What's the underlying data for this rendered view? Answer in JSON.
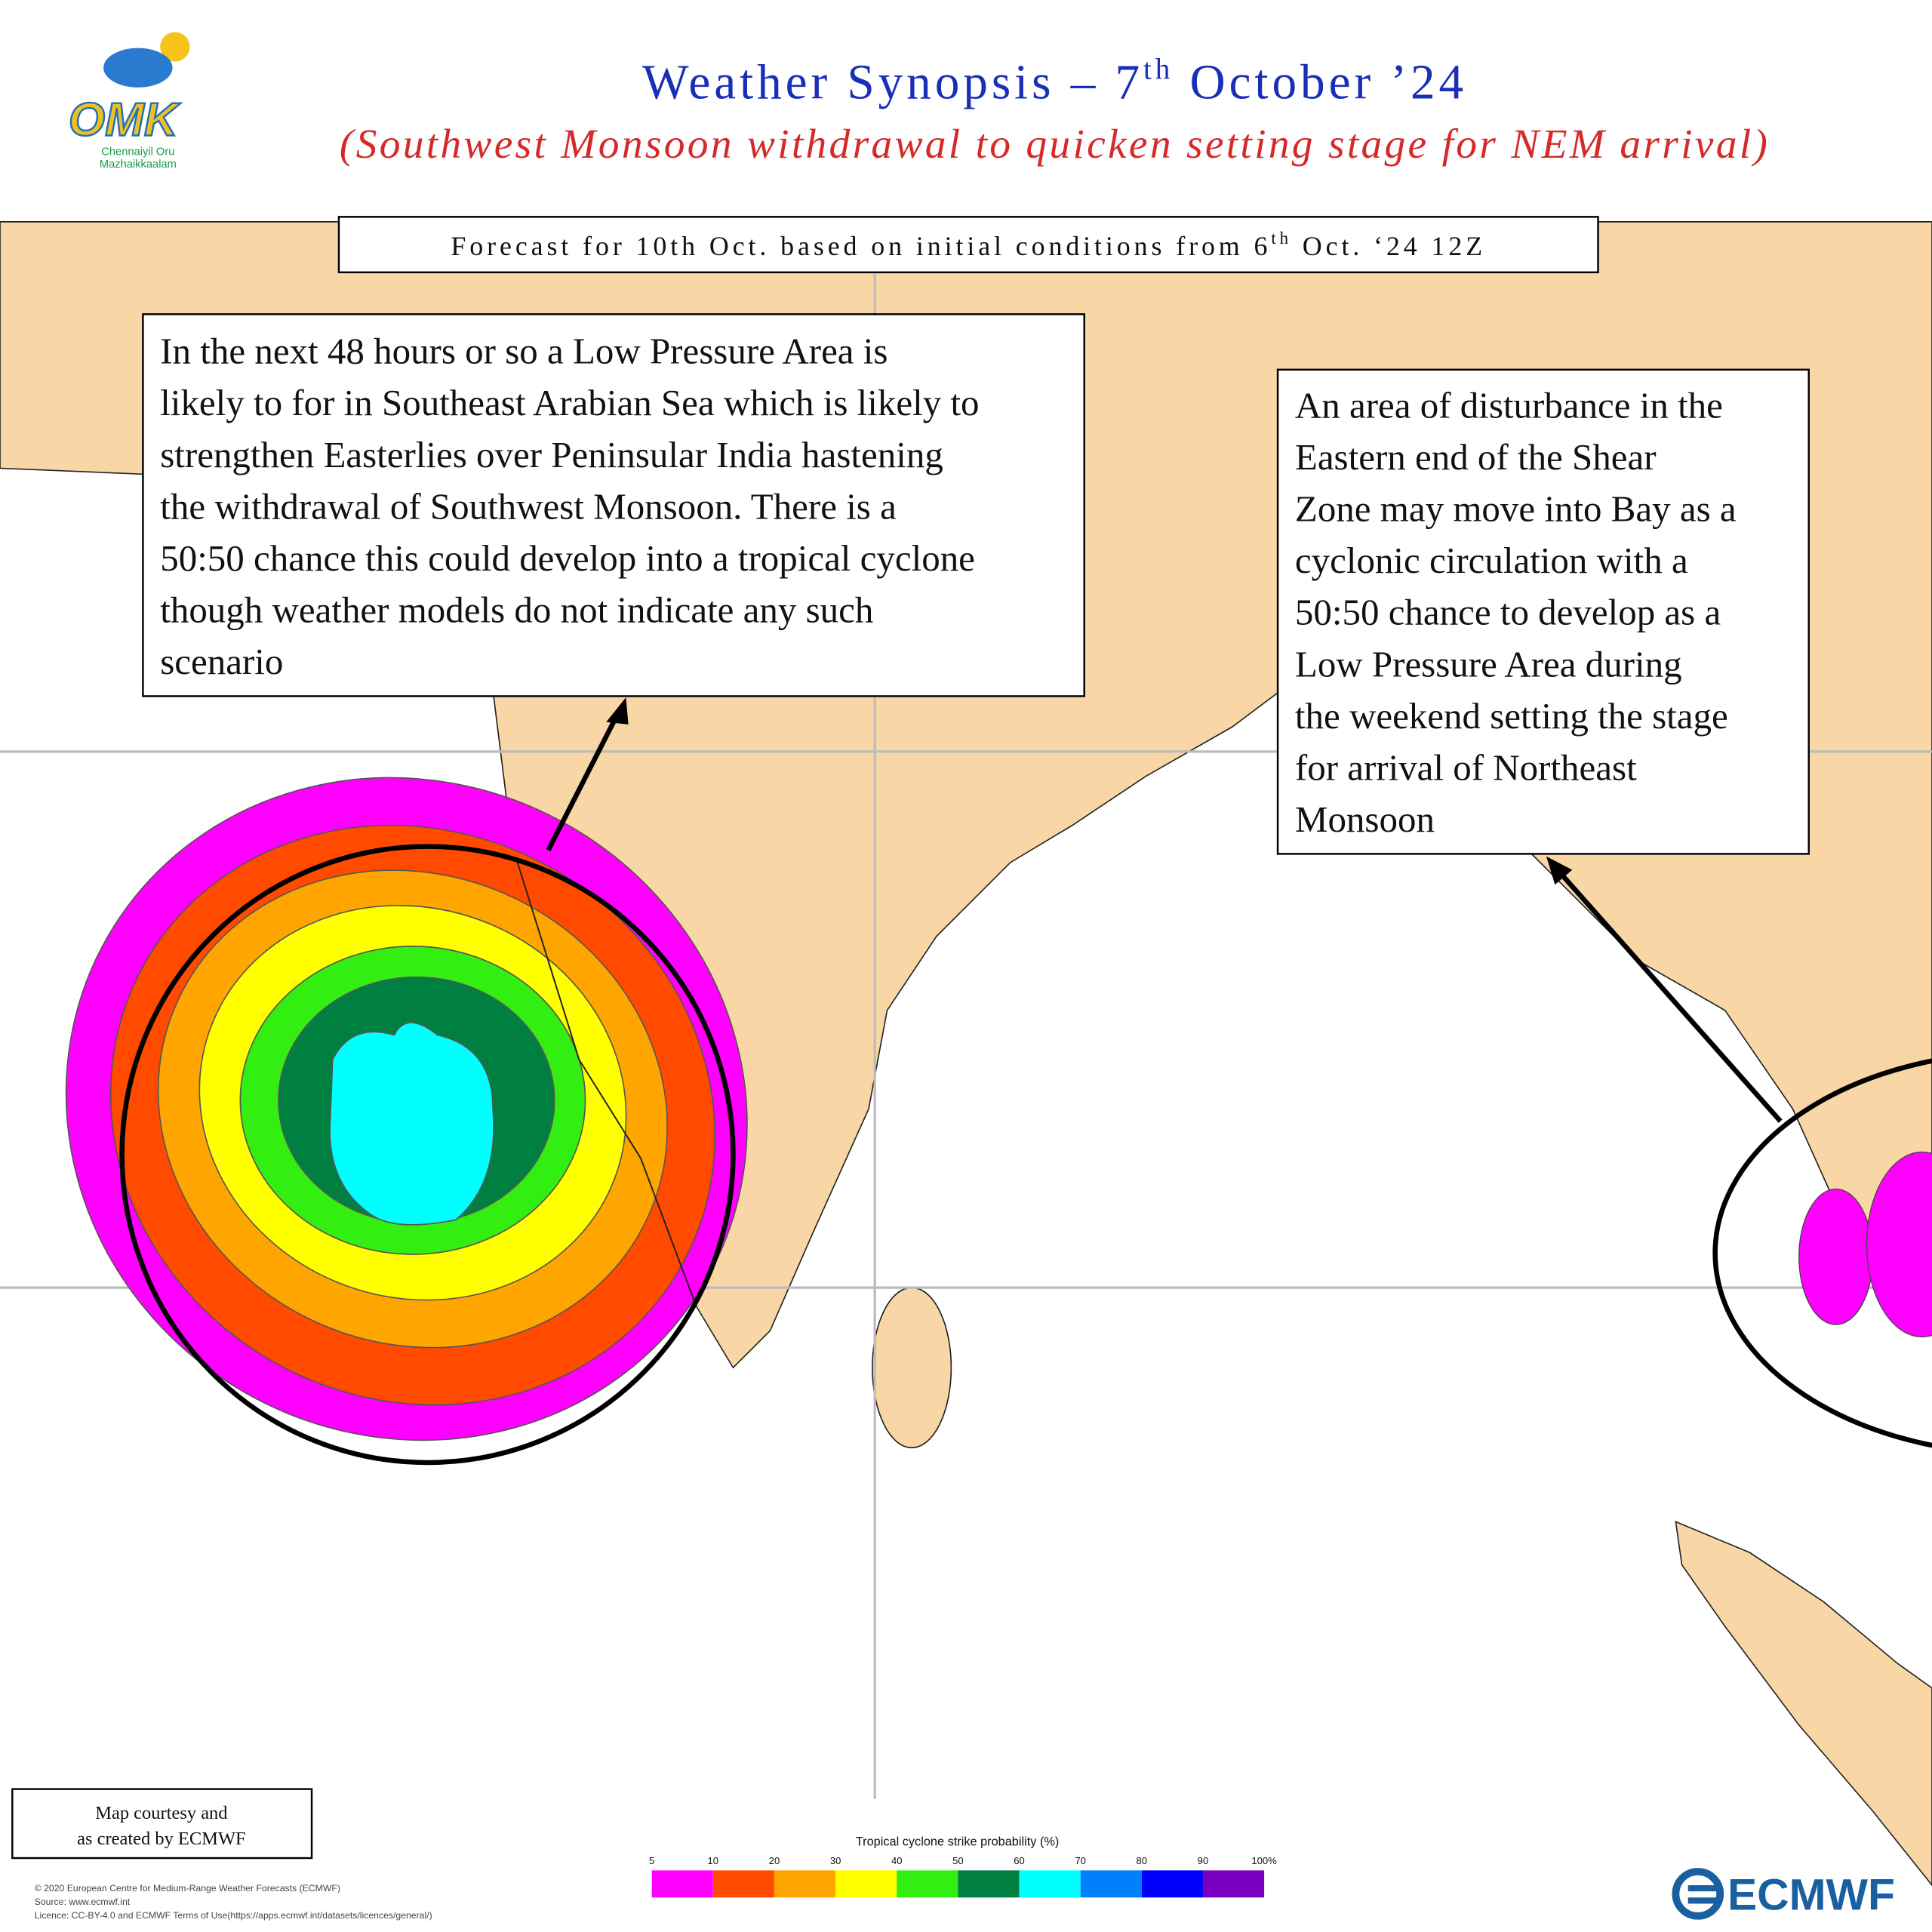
{
  "logo": {
    "mark": "OMK",
    "line1": "Chennaiyil Oru",
    "line2": "Mazhaikkaalam"
  },
  "header": {
    "title_main": "Weather Synopsis – 7",
    "title_sup": "th",
    "title_end": " October ’24",
    "subtitle": "(Southwest Monsoon withdrawal to quicken setting stage for NEM arrival)"
  },
  "forecast_box": {
    "text_main": "Forecast for 10th Oct. based on initial conditions from 6",
    "text_sup": "th",
    "text_end": " Oct. ‘24 12Z"
  },
  "annotation_left": {
    "lines": [
      "In the next 48 hours or so a Low Pressure Area is",
      "likely to for in Southeast Arabian Sea which is likely to",
      "strengthen Easterlies over Peninsular India hastening",
      "the withdrawal of Southwest Monsoon. There is a",
      "50:50 chance this could develop into a tropical cyclone",
      "though weather models do not indicate any such",
      "scenario"
    ]
  },
  "annotation_right": {
    "lines": [
      "An area of disturbance in the",
      "Eastern end of the Shear",
      "Zone may move into Bay as a",
      "cyclonic circulation with a",
      "50:50 chance to develop as a",
      "Low Pressure Area during",
      "the weekend setting the stage",
      "for arrival of Northeast",
      "Monsoon"
    ]
  },
  "courtesy": {
    "lines": [
      "Map courtesy and",
      "as created by ECMWF"
    ]
  },
  "legend": {
    "title": "Tropical cyclone strike probability (%)",
    "ticks": [
      "5",
      "10",
      "20",
      "30",
      "40",
      "50",
      "60",
      "70",
      "80",
      "90",
      "100%"
    ],
    "colors": [
      "#ff00ff",
      "#ff4a00",
      "#ffa500",
      "#ffff00",
      "#33ee11",
      "#008040",
      "#00ffff",
      "#0080ff",
      "#0000ff",
      "#7a00c0"
    ]
  },
  "copyright": {
    "lines": [
      "© 2020 European Centre for Medium-Range Weather Forecasts (ECMWF)",
      "Source: www.ecmwf.int",
      "Licence: CC-BY-4.0 and ECMWF Terms of Use(https://apps.ecmwf.int/datasets/licences/general/)"
    ]
  },
  "brand": {
    "text": "ECMWF"
  }
}
